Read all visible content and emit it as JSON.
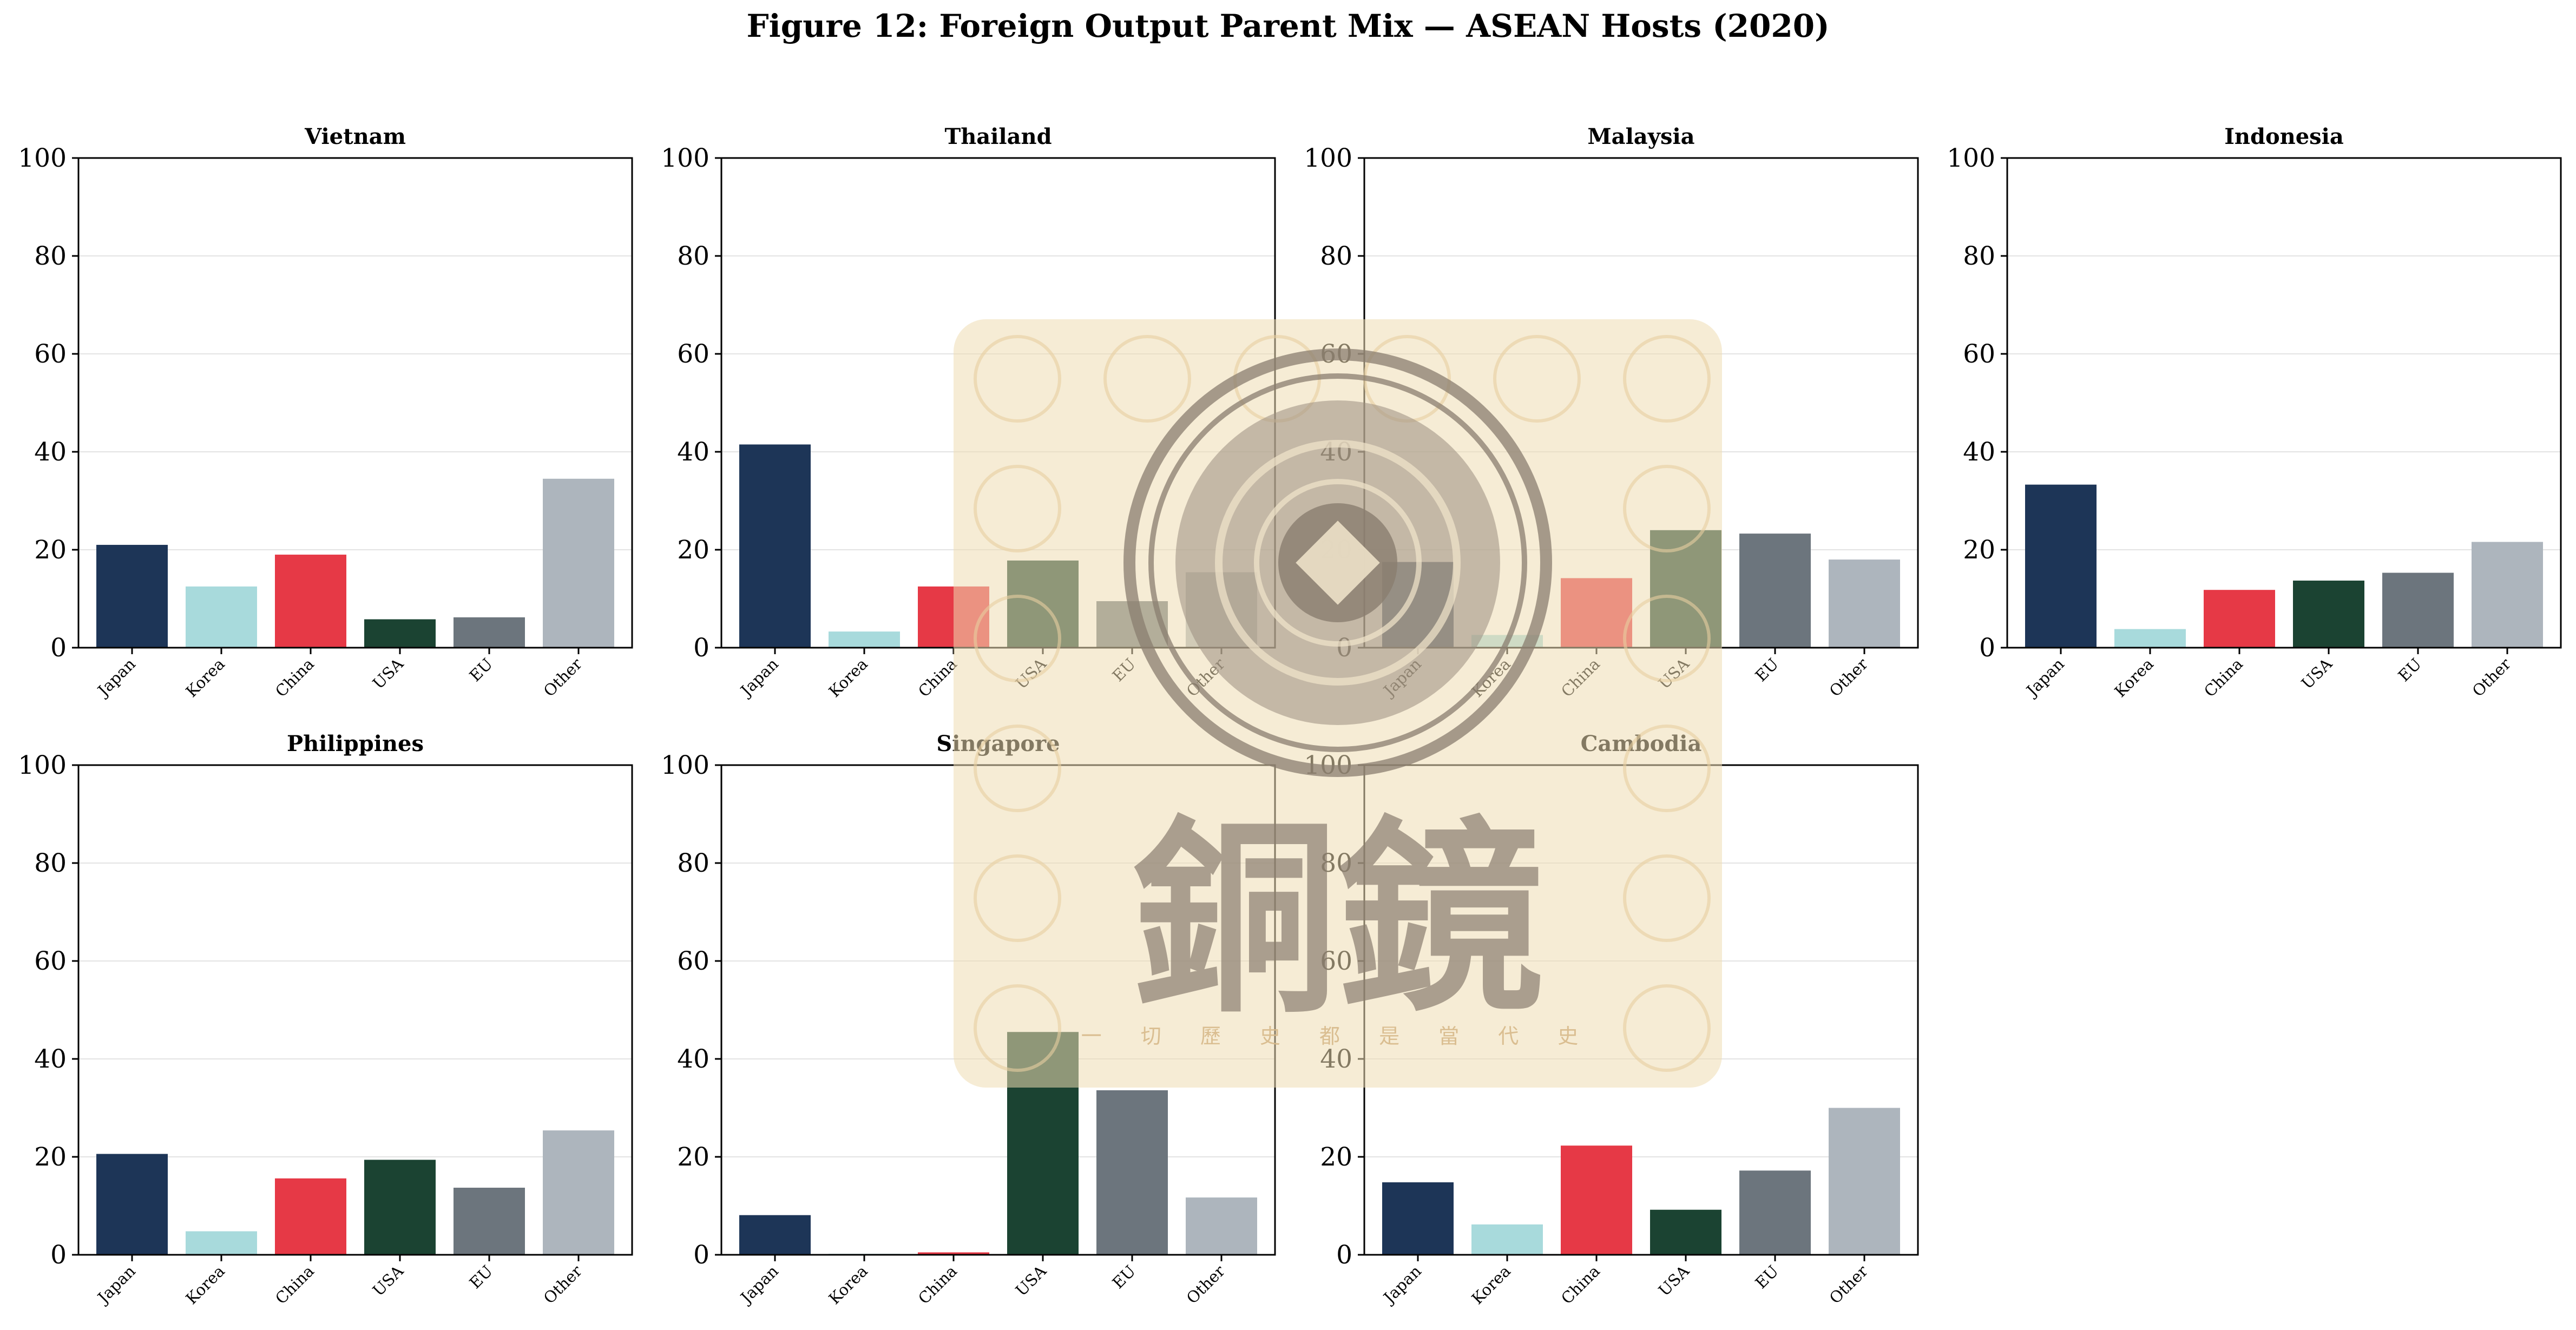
{
  "figure_title": "Figure 12: Foreign Output Parent Mix — ASEAN Hosts (2020)",
  "colors": {
    "Japan": "#1d3557",
    "Korea": "#a8dadc",
    "China": "#e63946",
    "USA": "#1b4332",
    "EU": "#6c757d",
    "Other": "#adb5bd"
  },
  "watermark": {
    "icon": "bronze-mirror-seal-icon",
    "glyphs": "銅鏡",
    "motto": "一 切 歷 史 都 是 當 代 史"
  },
  "chart_data": [
    {
      "type": "bar",
      "title": "Vietnam",
      "categories": [
        "Japan",
        "Korea",
        "China",
        "USA",
        "EU",
        "Other"
      ],
      "values": [
        21,
        12.5,
        19,
        5.8,
        6.2,
        34.5
      ],
      "ylim": [
        0,
        100
      ],
      "yticks": [
        0,
        20,
        40,
        60,
        80,
        100
      ],
      "grid": true
    },
    {
      "type": "bar",
      "title": "Thailand",
      "categories": [
        "Japan",
        "Korea",
        "China",
        "USA",
        "EU",
        "Other"
      ],
      "values": [
        41.5,
        3.3,
        12.5,
        17.8,
        9.5,
        15.4
      ],
      "ylim": [
        0,
        100
      ],
      "yticks": [
        0,
        20,
        40,
        60,
        80,
        100
      ],
      "grid": true
    },
    {
      "type": "bar",
      "title": "Malaysia",
      "categories": [
        "Japan",
        "Korea",
        "China",
        "USA",
        "EU",
        "Other"
      ],
      "values": [
        17.5,
        2.6,
        14.2,
        24,
        23.3,
        18
      ],
      "ylim": [
        0,
        100
      ],
      "yticks": [
        0,
        20,
        40,
        60,
        80,
        100
      ],
      "grid": true
    },
    {
      "type": "bar",
      "title": "Indonesia",
      "categories": [
        "Japan",
        "Korea",
        "China",
        "USA",
        "EU",
        "Other"
      ],
      "values": [
        33.3,
        3.8,
        11.8,
        13.7,
        15.3,
        21.6
      ],
      "ylim": [
        0,
        100
      ],
      "yticks": [
        0,
        20,
        40,
        60,
        80,
        100
      ],
      "grid": true
    },
    {
      "type": "bar",
      "title": "Philippines",
      "categories": [
        "Japan",
        "Korea",
        "China",
        "USA",
        "EU",
        "Other"
      ],
      "values": [
        20.6,
        4.8,
        15.6,
        19.4,
        13.7,
        25.4
      ],
      "ylim": [
        0,
        100
      ],
      "yticks": [
        0,
        20,
        40,
        60,
        80,
        100
      ],
      "grid": true
    },
    {
      "type": "bar",
      "title": "Singapore",
      "categories": [
        "Japan",
        "Korea",
        "China",
        "USA",
        "EU",
        "Other"
      ],
      "values": [
        8.1,
        0.2,
        0.5,
        45.5,
        33.6,
        11.7
      ],
      "ylim": [
        0,
        100
      ],
      "yticks": [
        0,
        20,
        40,
        60,
        80,
        100
      ],
      "grid": true
    },
    {
      "type": "bar",
      "title": "Cambodia",
      "categories": [
        "Japan",
        "Korea",
        "China",
        "USA",
        "EU",
        "Other"
      ],
      "values": [
        14.8,
        6.2,
        22.3,
        9.2,
        17.2,
        30
      ],
      "ylim": [
        0,
        100
      ],
      "yticks": [
        0,
        20,
        40,
        60,
        80,
        100
      ],
      "grid": true
    }
  ]
}
